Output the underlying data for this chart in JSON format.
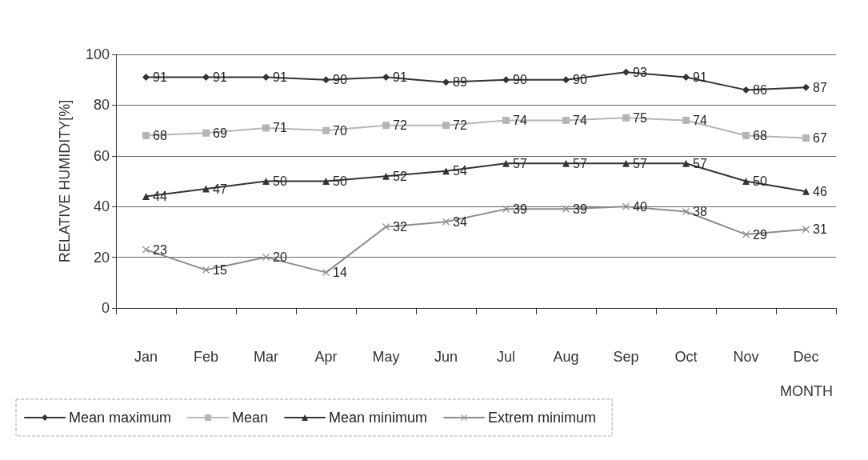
{
  "chart_data": {
    "type": "line",
    "xlabel": "MONTH",
    "ylabel": "RELATIVE HUMIDITY[%]",
    "categories": [
      "Jan",
      "Feb",
      "Mar",
      "Apr",
      "May",
      "Jun",
      "Jul",
      "Aug",
      "Sep",
      "Oct",
      "Nov",
      "Dec"
    ],
    "series": [
      {
        "name": "Mean maximum",
        "color": "#333333",
        "marker": "diamond",
        "values": [
          91,
          91,
          91,
          90,
          91,
          89,
          90,
          90,
          93,
          91,
          86,
          87
        ]
      },
      {
        "name": "Mean",
        "color": "#b5b5b5",
        "marker": "square",
        "values": [
          68,
          69,
          71,
          70,
          72,
          72,
          74,
          74,
          75,
          74,
          68,
          67
        ]
      },
      {
        "name": "Mean minimum",
        "color": "#333333",
        "marker": "triangle",
        "values": [
          44,
          47,
          50,
          50,
          52,
          54,
          57,
          57,
          57,
          57,
          50,
          46
        ]
      },
      {
        "name": "Extrem minimum",
        "color": "#8c8c8c",
        "marker": "cross",
        "values": [
          23,
          15,
          20,
          14,
          32,
          34,
          39,
          39,
          40,
          38,
          29,
          31
        ]
      }
    ],
    "ylim": [
      0,
      100
    ],
    "yticks": [
      0,
      20,
      40,
      60,
      80,
      100
    ],
    "grid": "y",
    "legend": "bottom",
    "data_labels": true,
    "line_style": "solid"
  }
}
